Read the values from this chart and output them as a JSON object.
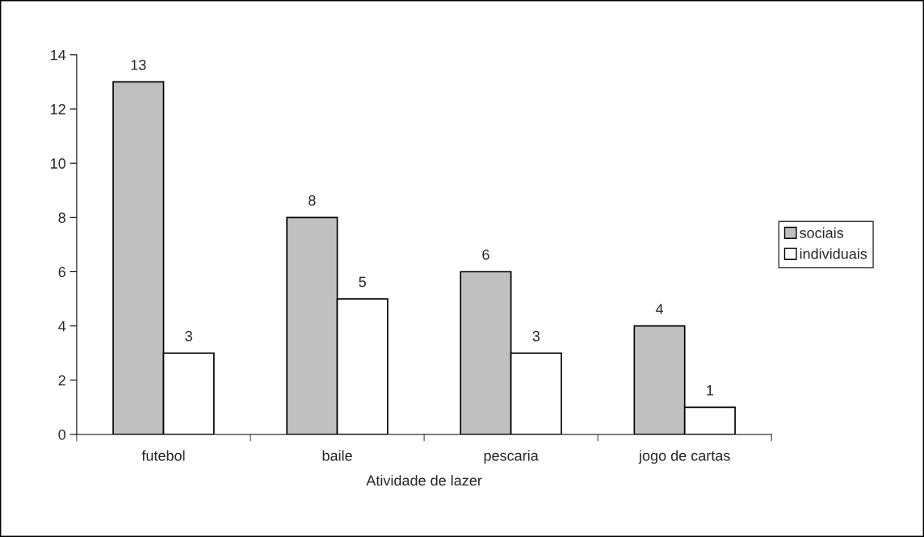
{
  "chart_data": {
    "type": "bar",
    "xlabel": "Atividade de lazer",
    "categories": [
      "futebol",
      "baile",
      "pescaria",
      "jogo de cartas"
    ],
    "series": [
      {
        "name": "sociais",
        "color": "#c0c0c0",
        "values": [
          13,
          8,
          6,
          4
        ]
      },
      {
        "name": "individuais",
        "color": "#ffffff",
        "values": [
          3,
          5,
          3,
          1
        ]
      }
    ],
    "ylim": [
      0,
      14
    ],
    "yticks": [
      0,
      2,
      4,
      6,
      8,
      10,
      12,
      14
    ],
    "grid": false,
    "legend": "right",
    "data_labels": true
  }
}
